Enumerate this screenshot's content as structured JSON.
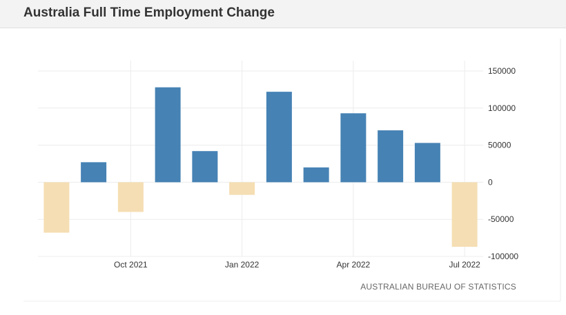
{
  "header": {
    "title": "Australia Full Time Employment Change"
  },
  "source_label": "AUSTRALIAN BUREAU OF STATISTICS",
  "colors": {
    "positive": "#4682b4",
    "negative": "#f5deb3",
    "grid": "#ececec"
  },
  "chart_data": {
    "type": "bar",
    "categories": [
      "Aug 2021",
      "Sep 2021",
      "Oct 2021",
      "Nov 2021",
      "Dec 2021",
      "Jan 2022",
      "Feb 2022",
      "Mar 2022",
      "Apr 2022",
      "May 2022",
      "Jun 2022",
      "Jul 2022"
    ],
    "values": [
      -68000,
      27000,
      -40000,
      128000,
      42000,
      -17000,
      122000,
      20000,
      93000,
      70000,
      53000,
      -87000
    ],
    "x_tick_labels": [
      {
        "category": "Oct 2021",
        "label": "Oct 2021"
      },
      {
        "category": "Jan 2022",
        "label": "Jan 2022"
      },
      {
        "category": "Apr 2022",
        "label": "Apr 2022"
      },
      {
        "category": "Jul 2022",
        "label": "Jul 2022"
      }
    ],
    "y_ticks": [
      150000,
      100000,
      50000,
      0,
      -50000,
      -100000
    ],
    "ylim": [
      -100000,
      150000
    ],
    "grid": true,
    "y_axis_side": "right"
  }
}
